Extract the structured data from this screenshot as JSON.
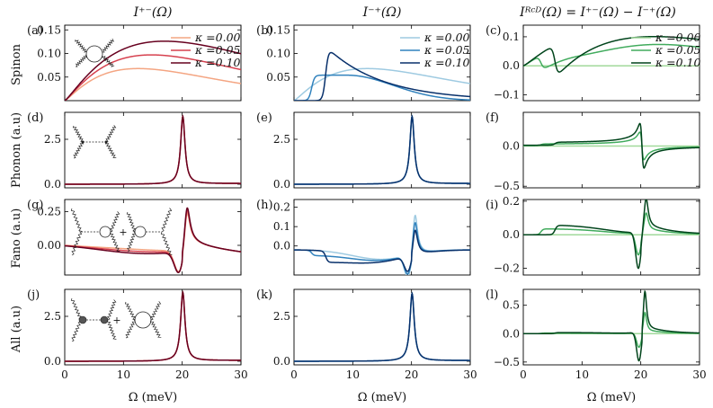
{
  "column_titles": [
    "I⁺⁻(Ω)",
    "I⁻⁺(Ω)",
    "Iᴿᶜᴰ(Ω) = I⁺⁻(Ω) − I⁻⁺(Ω)"
  ],
  "row_labels": [
    "Spinon",
    "Phonon (a.u)",
    "Fano (a.u)",
    "All (a.u)"
  ],
  "x_axis_label": "Ω (meV)",
  "legend_labels": [
    "κ =0.00",
    "κ =0.05",
    "κ =0.10"
  ],
  "colors": {
    "reds": [
      "#f4a582",
      "#d6404e",
      "#67001f"
    ],
    "blues": [
      "#9ecae1",
      "#3182bd",
      "#08306b"
    ],
    "greens": [
      "#a1d99b",
      "#41ab5d",
      "#00441b"
    ]
  },
  "diagram_labels": [
    "+",
    "+"
  ],
  "chart_data": [
    {
      "panel": "(a)",
      "type": "line",
      "xlim": [
        0,
        30
      ],
      "ylim": [
        0.0,
        0.16
      ],
      "yticks": [
        0.05,
        0.1,
        0.15
      ],
      "ytick_labels": [
        "0.05",
        "0.10",
        "0.15"
      ],
      "xticks": [
        0,
        10,
        20,
        30
      ],
      "xtick_labels": [
        "",
        "",
        "",
        ""
      ],
      "series": [
        {
          "name": "κ =0.00",
          "curve": "spinon_pm",
          "kappa": 0.0
        },
        {
          "name": "κ =0.05",
          "curve": "spinon_pm",
          "kappa": 0.05
        },
        {
          "name": "κ =0.10",
          "curve": "spinon_pm",
          "kappa": 0.1
        }
      ]
    },
    {
      "panel": "(b)",
      "type": "line",
      "xlim": [
        0,
        30
      ],
      "ylim": [
        0.0,
        0.16
      ],
      "yticks": [
        0.05,
        0.1,
        0.15
      ],
      "ytick_labels": [
        "0.05",
        "0.10",
        "0.15"
      ],
      "xticks": [
        0,
        10,
        20,
        30
      ],
      "xtick_labels": [
        "",
        "",
        "",
        ""
      ],
      "series": [
        {
          "name": "κ =0.00",
          "curve": "spinon_mp",
          "kappa": 0.0
        },
        {
          "name": "κ =0.05",
          "curve": "spinon_mp",
          "kappa": 0.05
        },
        {
          "name": "κ =0.10",
          "curve": "spinon_mp",
          "kappa": 0.1
        }
      ]
    },
    {
      "panel": "(c)",
      "type": "line",
      "xlim": [
        0,
        30
      ],
      "ylim": [
        -0.12,
        0.14
      ],
      "yticks": [
        -0.1,
        0.0,
        0.1
      ],
      "ytick_labels": [
        "−0.1",
        "0.0",
        "0.1"
      ],
      "xticks": [
        0,
        10,
        20,
        30
      ],
      "xtick_labels": [
        "",
        "",
        "",
        ""
      ],
      "series": [
        {
          "name": "κ =0.00",
          "curve": "spinon_rcd",
          "kappa": 0.0
        },
        {
          "name": "κ =0.05",
          "curve": "spinon_rcd",
          "kappa": 0.05
        },
        {
          "name": "κ =0.10",
          "curve": "spinon_rcd",
          "kappa": 0.1
        }
      ]
    },
    {
      "panel": "(d)",
      "type": "line",
      "xlim": [
        0,
        30
      ],
      "ylim": [
        -0.2,
        4.0
      ],
      "yticks": [
        0.0,
        2.5
      ],
      "ytick_labels": [
        "0.0",
        "2.5"
      ],
      "xticks": [
        0,
        10,
        20,
        30
      ],
      "xtick_labels": [
        "",
        "",
        "",
        ""
      ],
      "series": [
        {
          "curve": "phonon",
          "kappa": 0.0
        },
        {
          "curve": "phonon",
          "kappa": 0.05
        },
        {
          "curve": "phonon",
          "kappa": 0.1
        }
      ]
    },
    {
      "panel": "(e)",
      "type": "line",
      "xlim": [
        0,
        30
      ],
      "ylim": [
        -0.2,
        4.0
      ],
      "yticks": [
        0.0,
        2.5
      ],
      "ytick_labels": [
        "0.0",
        "2.5"
      ],
      "xticks": [
        0,
        10,
        20,
        30
      ],
      "xtick_labels": [
        "",
        "",
        "",
        ""
      ],
      "series": [
        {
          "curve": "phonon",
          "kappa": 0.0
        },
        {
          "curve": "phonon",
          "kappa": 0.05
        },
        {
          "curve": "phonon",
          "kappa": 0.1
        }
      ]
    },
    {
      "panel": "(f)",
      "type": "line",
      "xlim": [
        0,
        30
      ],
      "ylim": [
        -0.52,
        0.42
      ],
      "yticks": [
        -0.5,
        0.0
      ],
      "ytick_labels": [
        "−0.5",
        "0.0"
      ],
      "xticks": [
        0,
        10,
        20,
        30
      ],
      "xtick_labels": [
        "",
        "",
        "",
        ""
      ],
      "series": [
        {
          "curve": "phonon_rcd",
          "kappa": 0.0
        },
        {
          "curve": "phonon_rcd",
          "kappa": 0.05
        },
        {
          "curve": "phonon_rcd",
          "kappa": 0.1
        }
      ]
    },
    {
      "panel": "(g)",
      "type": "line",
      "xlim": [
        0,
        30
      ],
      "ylim": [
        -0.22,
        0.34
      ],
      "yticks": [
        0.0,
        0.25
      ],
      "ytick_labels": [
        "0.00",
        "0.25"
      ],
      "xticks": [
        0,
        10,
        20,
        30
      ],
      "xtick_labels": [
        "",
        "",
        "",
        ""
      ],
      "series": [
        {
          "curve": "fano_pm",
          "kappa": 0.0
        },
        {
          "curve": "fano_pm",
          "kappa": 0.05
        },
        {
          "curve": "fano_pm",
          "kappa": 0.1
        }
      ]
    },
    {
      "panel": "(h)",
      "type": "line",
      "xlim": [
        0,
        30
      ],
      "ylim": [
        -0.15,
        0.24
      ],
      "yticks": [
        0.0,
        0.1,
        0.2
      ],
      "ytick_labels": [
        "0.0",
        "0.1",
        "0.2"
      ],
      "xticks": [
        0,
        10,
        20,
        30
      ],
      "xtick_labels": [
        "",
        "",
        "",
        ""
      ],
      "series": [
        {
          "curve": "fano_mp",
          "kappa": 0.0
        },
        {
          "curve": "fano_mp",
          "kappa": 0.05
        },
        {
          "curve": "fano_mp",
          "kappa": 0.1
        }
      ]
    },
    {
      "panel": "(i)",
      "type": "line",
      "xlim": [
        0,
        30
      ],
      "ylim": [
        -0.24,
        0.21
      ],
      "yticks": [
        -0.2,
        0.0,
        0.2
      ],
      "ytick_labels": [
        "−0.2",
        "0.0",
        "0.2"
      ],
      "xticks": [
        0,
        10,
        20,
        30
      ],
      "xtick_labels": [
        "",
        "",
        "",
        ""
      ],
      "series": [
        {
          "curve": "fano_rcd",
          "kappa": 0.0
        },
        {
          "curve": "fano_rcd",
          "kappa": 0.05
        },
        {
          "curve": "fano_rcd",
          "kappa": 0.1
        }
      ]
    },
    {
      "panel": "(j)",
      "type": "line",
      "xlim": [
        0,
        30
      ],
      "ylim": [
        -0.2,
        4.0
      ],
      "yticks": [
        0.0,
        2.5
      ],
      "ytick_labels": [
        "0.0",
        "2.5"
      ],
      "xticks": [
        0,
        10,
        20,
        30
      ],
      "xtick_labels": [
        "0",
        "10",
        "20",
        "30"
      ],
      "series": [
        {
          "curve": "all_pm",
          "kappa": 0.0
        },
        {
          "curve": "all_pm",
          "kappa": 0.05
        },
        {
          "curve": "all_pm",
          "kappa": 0.1
        }
      ]
    },
    {
      "panel": "(k)",
      "type": "line",
      "xlim": [
        0,
        30
      ],
      "ylim": [
        -0.2,
        4.0
      ],
      "yticks": [
        0.0,
        2.5
      ],
      "ytick_labels": [
        "0.0",
        "2.5"
      ],
      "xticks": [
        0,
        10,
        20,
        30
      ],
      "xtick_labels": [
        "0",
        "10",
        "20",
        "30"
      ],
      "series": [
        {
          "curve": "all_mp",
          "kappa": 0.0
        },
        {
          "curve": "all_mp",
          "kappa": 0.05
        },
        {
          "curve": "all_mp",
          "kappa": 0.1
        }
      ]
    },
    {
      "panel": "(l)",
      "type": "line",
      "xlim": [
        0,
        30
      ],
      "ylim": [
        -0.55,
        0.78
      ],
      "yticks": [
        -0.5,
        0.0,
        0.5
      ],
      "ytick_labels": [
        "−0.5",
        "0.0",
        "0.5"
      ],
      "xticks": [
        0,
        10,
        20,
        30
      ],
      "xtick_labels": [
        "0",
        "10",
        "20",
        "30"
      ],
      "series": [
        {
          "curve": "all_rcd",
          "kappa": 0.0
        },
        {
          "curve": "all_rcd",
          "kappa": 0.05
        },
        {
          "curve": "all_rcd",
          "kappa": 0.1
        }
      ]
    }
  ]
}
